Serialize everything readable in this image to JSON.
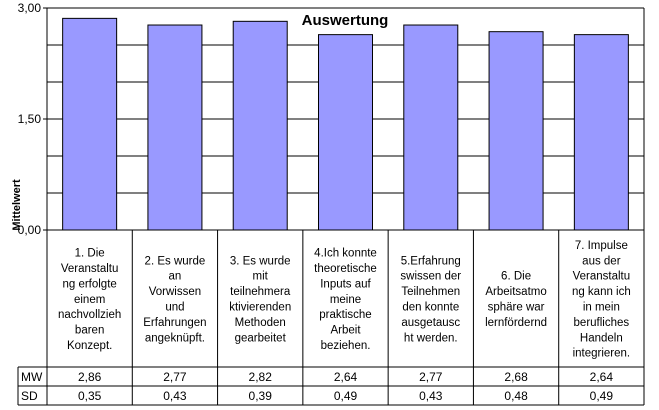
{
  "chart_data": {
    "type": "bar",
    "title": "Auswertung",
    "ylabel": "Mittelwert",
    "ylim": [
      0,
      3
    ],
    "yticks": [
      "0,00",
      "1,50",
      "3,00"
    ],
    "grid": true,
    "bar_color": "#9999ff",
    "categories": [
      [
        "1. Die",
        "Veranstaltu",
        "ng erfolgte",
        "einem",
        "nachvollzieh",
        "baren",
        "Konzept."
      ],
      [
        "2. Es wurde",
        "an",
        "Vorwissen",
        "und",
        "Erfahrungen",
        "angeknüpft."
      ],
      [
        "3. Es wurde",
        "mit",
        "teilnehmera",
        "ktivierenden",
        "Methoden",
        "gearbeitet"
      ],
      [
        "4.Ich konnte",
        "theoretische",
        "Inputs auf",
        "meine",
        "praktische",
        "Arbeit",
        "beziehen."
      ],
      [
        "5.Erfahrung",
        "swissen der",
        "Teilnehmen",
        "den konnte",
        "ausgetausc",
        "ht werden."
      ],
      [
        "6. Die",
        "Arbeitsatmo",
        "sphäre war",
        "lernfördernd"
      ],
      [
        "7. Impulse",
        "aus der",
        "Veranstaltu",
        "ng kann ich",
        "in mein",
        "berufliches",
        "Handeln",
        "integrieren."
      ]
    ],
    "series": [
      {
        "name": "MW",
        "values": [
          2.86,
          2.77,
          2.82,
          2.64,
          2.77,
          2.68,
          2.64
        ]
      }
    ],
    "table": {
      "rows": [
        {
          "label": "MW",
          "values": [
            "2,86",
            "2,77",
            "2,82",
            "2,64",
            "2,77",
            "2,68",
            "2,64"
          ]
        },
        {
          "label": "SD",
          "values": [
            "0,35",
            "0,43",
            "0,39",
            "0,49",
            "0,43",
            "0,48",
            "0,49"
          ]
        }
      ]
    }
  }
}
